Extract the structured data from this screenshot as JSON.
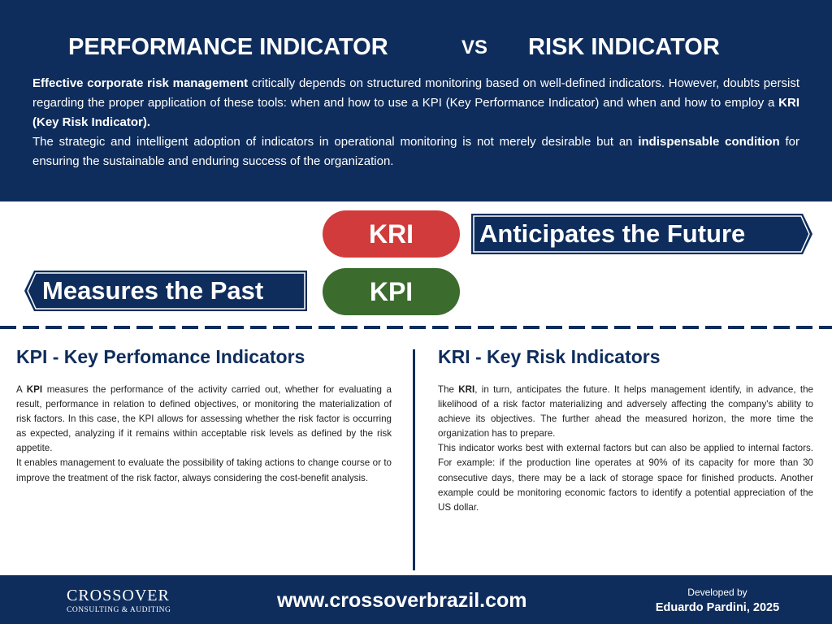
{
  "header": {
    "title_left": "PERFORMANCE INDICATOR",
    "vs": "VS",
    "title_right": "RISK INDICATOR"
  },
  "intro": {
    "paragraphs": [
      [
        "Effective corporate risk management",
        " critically depends on structured monitoring based on well-defined indicators. However, doubts persist regarding the proper application of these tools: when and how to use a KPI (Key Performance Indicator) and when and how to employ a ",
        "KRI (Key Risk Indicator)."
      ],
      [
        "The strategic and intelligent adoption of indicators in operational monitoring is not merely desirable but an ",
        "indispensable condition",
        " for ensuring the sustainable and enduring success of the organization."
      ]
    ]
  },
  "comparison": {
    "kri_label": "KRI",
    "kri_tagline": "Anticipates the Future",
    "kpi_label": "KPI",
    "kpi_tagline": "Measures the Past"
  },
  "columns": {
    "kpi": {
      "heading": "KPI - Key Perfomance Indicators",
      "paragraphs": [
        [
          "A ",
          "KPI",
          " measures the performance of the activity carried out, whether for evaluating a result, performance in relation to defined objectives, or monitoring the materialization of risk factors. In this case, the KPI allows for assessing whether the risk factor is occurring as expected, analyzing if it remains within acceptable risk levels as defined by the risk appetite."
        ],
        [
          "It enables management to evaluate the possibility of taking actions to change course or to improve the treatment of the risk factor, always considering the cost-benefit analysis."
        ]
      ]
    },
    "kri": {
      "heading": "KRI - Key Risk Indicators",
      "paragraphs": [
        [
          "The ",
          "KRI",
          ", in turn, anticipates the future. It helps management identify, in advance, the likelihood of a risk factor materializing and adversely affecting the company's ability to achieve its objectives. The further ahead the measured horizon, the more time the organization has to prepare."
        ],
        [
          "This indicator works best with external factors but can also be applied to internal factors. For example: if the production line operates at 90% of its capacity for more than 30 consecutive days, there may be a lack of storage space for finished products. Another example could be monitoring economic factors to identify a potential appreciation of the US dollar."
        ]
      ]
    }
  },
  "footer": {
    "logo_name": "CROSSOVER",
    "logo_sub": "CONSULTING & AUDITING",
    "url": "www.crossoverbrazil.com",
    "developed_by": "Developed by",
    "author": "Eduardo Pardini, 2025"
  }
}
